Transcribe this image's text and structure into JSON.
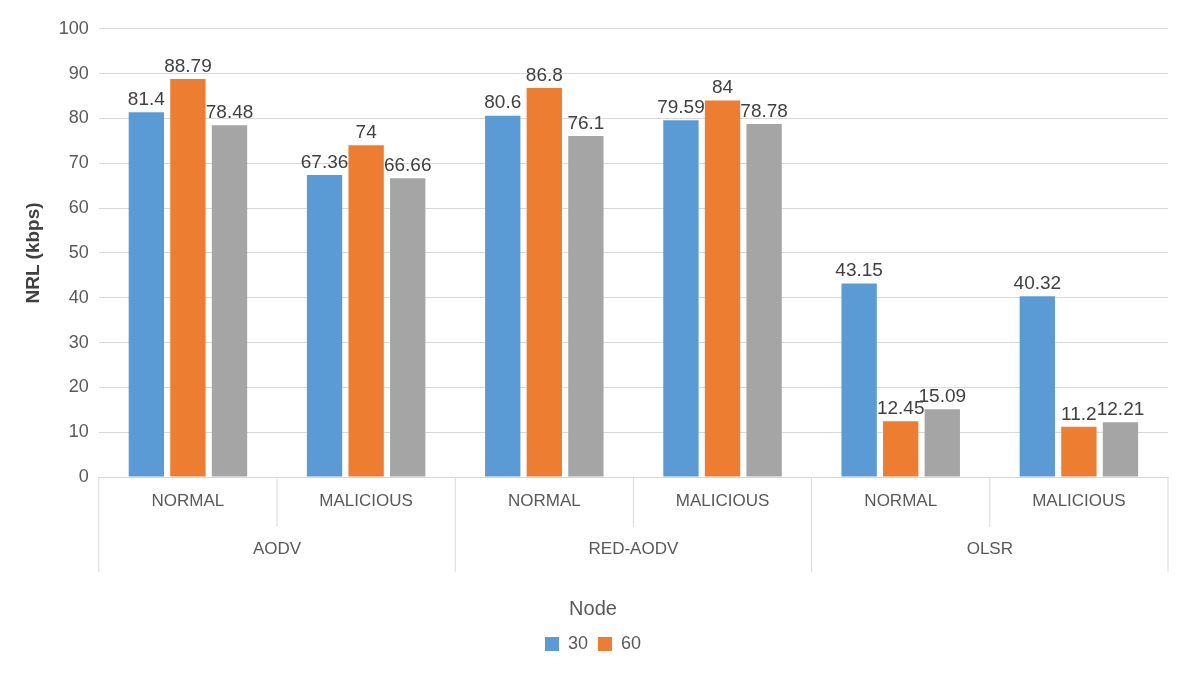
{
  "chart_data": {
    "type": "bar",
    "ylabel": "NRL (kbps)",
    "legend_title": "Node",
    "legend": "bottom",
    "grid": "y",
    "data_labels": true,
    "categories": [
      "NORMAL",
      "MALICIOUS",
      "NORMAL",
      "MALICIOUS",
      "NORMAL",
      "MALICIOUS"
    ],
    "annotations": [
      "AODV",
      "RED-AODV",
      "OLSR"
    ],
    "ylim": [
      0,
      100
    ],
    "yticks": [
      0,
      10,
      20,
      30,
      40,
      50,
      60,
      70,
      80,
      90,
      100
    ],
    "series": [
      {
        "name": "30",
        "color": "#5b9bd5",
        "values": [
          81.4,
          67.36,
          80.6,
          79.59,
          43.15,
          40.32
        ]
      },
      {
        "name": "60",
        "color": "#ed7d31",
        "values": [
          88.79,
          74,
          86.8,
          84,
          12.45,
          11.2
        ]
      },
      {
        "color": "#a5a5a5",
        "values": [
          78.48,
          66.66,
          76.1,
          78.78,
          15.09,
          12.21
        ]
      }
    ]
  }
}
